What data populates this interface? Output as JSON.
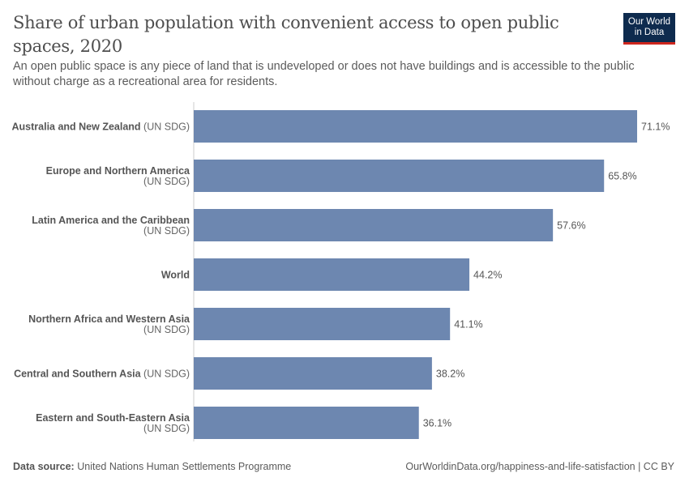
{
  "header": {
    "title": "Share of urban population with convenient access to open public spaces, 2020",
    "subtitle": "An open public space is any piece of land that is undeveloped or does not have buildings and is accessible to the public without charge as a recreational area for residents.",
    "logo": "Our World in Data"
  },
  "footer": {
    "source_label": "Data source:",
    "source": "United Nations Human Settlements Programme",
    "url": "OurWorldinData.org/happiness-and-life-satisfaction | CC BY"
  },
  "chart_data": {
    "type": "bar",
    "orientation": "horizontal",
    "title": "Share of urban population with convenient access to open public spaces, 2020",
    "categories": [
      {
        "name": "Australia and New Zealand",
        "suffix": "(UN SDG)",
        "wrap": false
      },
      {
        "name": "Europe and Northern America",
        "suffix": "(UN SDG)",
        "wrap": true
      },
      {
        "name": "Latin America and the Caribbean",
        "suffix": "(UN SDG)",
        "wrap": true
      },
      {
        "name": "World",
        "suffix": "",
        "wrap": false
      },
      {
        "name": "Northern Africa and Western Asia",
        "suffix": "(UN SDG)",
        "wrap": true
      },
      {
        "name": "Central and Southern Asia",
        "suffix": "(UN SDG)",
        "wrap": false
      },
      {
        "name": "Eastern and South-Eastern Asia",
        "suffix": "(UN SDG)",
        "wrap": true
      }
    ],
    "values": [
      71.1,
      65.8,
      57.6,
      44.2,
      41.1,
      38.2,
      36.1
    ],
    "value_labels": [
      "71.1%",
      "65.8%",
      "57.6%",
      "44.2%",
      "41.1%",
      "38.2%",
      "36.1%"
    ],
    "unit": "%",
    "xlim": [
      0,
      71.1
    ],
    "bar_color": "#6d87b0",
    "grid": false
  }
}
